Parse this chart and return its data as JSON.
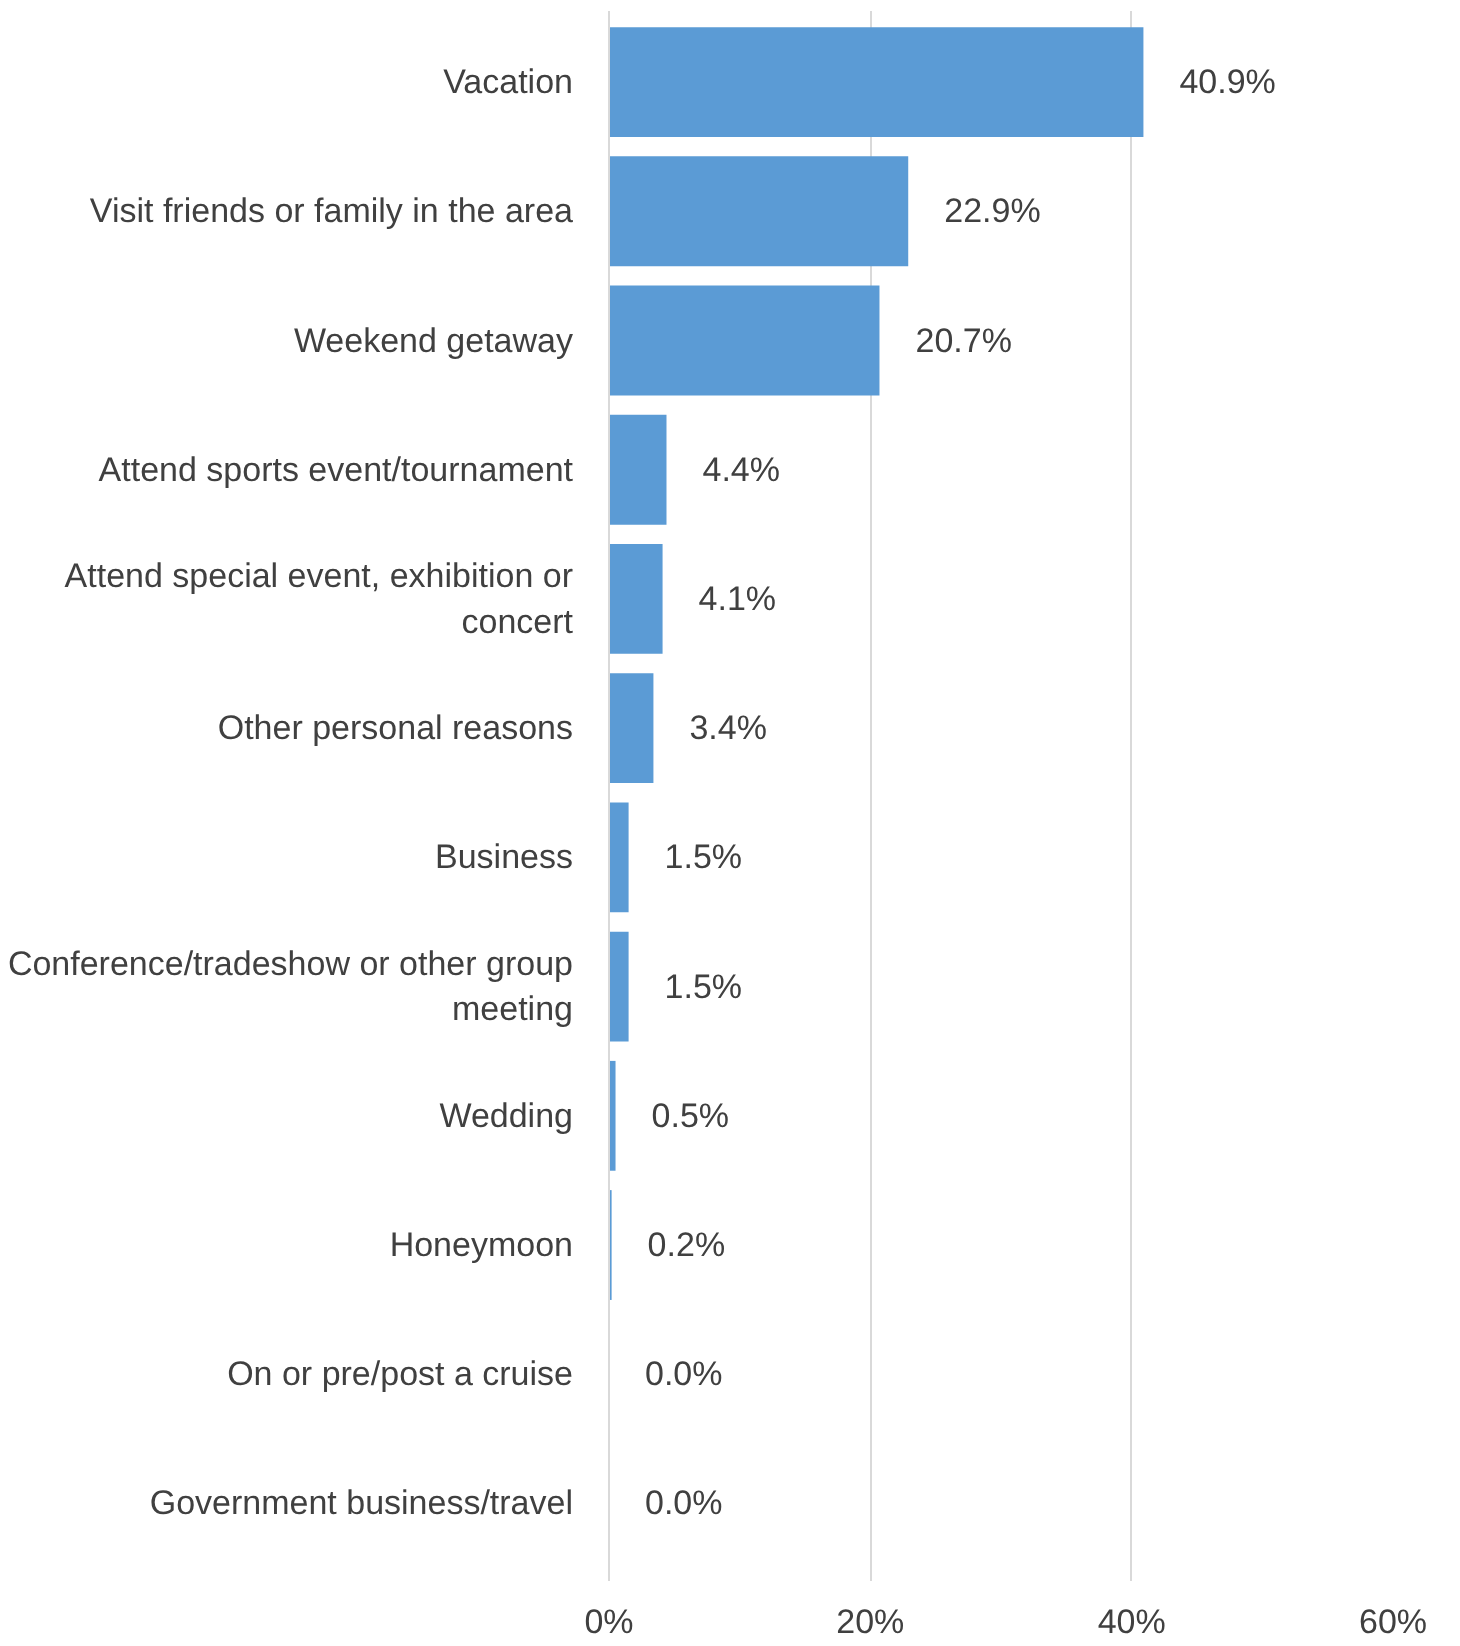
{
  "chart_data": {
    "type": "bar",
    "orientation": "horizontal",
    "categories": [
      "Vacation",
      "Visit friends or family in the area",
      "Weekend getaway",
      "Attend sports event/tournament",
      "Attend special event, exhibition or concert",
      "Other personal reasons",
      "Business",
      "Conference/tradeshow or other group meeting",
      "Wedding",
      "Honeymoon",
      "On or pre/post a cruise",
      "Government business/travel"
    ],
    "values": [
      40.9,
      22.9,
      20.7,
      4.4,
      4.1,
      3.4,
      1.5,
      1.5,
      0.5,
      0.2,
      0.0,
      0.0
    ],
    "value_labels": [
      "40.9%",
      "22.9%",
      "20.7%",
      "4.4%",
      "4.1%",
      "3.4%",
      "1.5%",
      "1.5%",
      "0.5%",
      "0.2%",
      "0.0%",
      "0.0%"
    ],
    "color": "#5b9bd5",
    "xlim": [
      0,
      60
    ],
    "xticks": [
      {
        "value": 0,
        "label": "0%"
      },
      {
        "value": 20,
        "label": "20%"
      },
      {
        "value": 40,
        "label": "40%"
      },
      {
        "value": 60,
        "label": "60%"
      }
    ],
    "grid": "x"
  }
}
